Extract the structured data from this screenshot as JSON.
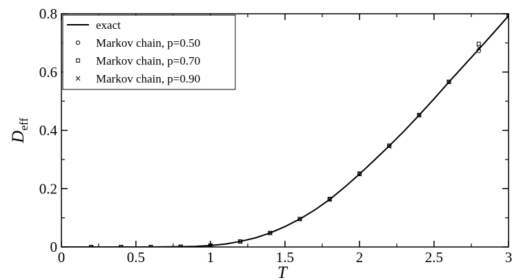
{
  "chart_data": {
    "type": "line",
    "title": "",
    "xlabel": "T",
    "ylabel_main": "D",
    "ylabel_sub": "eff",
    "xlim": [
      0,
      3
    ],
    "ylim": [
      0,
      0.8
    ],
    "x_ticks": [
      0,
      0.5,
      1,
      1.5,
      2,
      2.5,
      3
    ],
    "x_tick_labels": [
      "0",
      "0.5",
      "1",
      "1.5",
      "2",
      "2.5",
      "3"
    ],
    "y_ticks": [
      0,
      0.2,
      0.4,
      0.6,
      0.8
    ],
    "y_tick_labels": [
      "0",
      "0.2",
      "0.4",
      "0.6",
      "0.8"
    ],
    "grid": false,
    "legend_position": "top-left",
    "series": [
      {
        "name": "exact",
        "style": "line",
        "x": [
          0,
          0.2,
          0.4,
          0.6,
          0.8,
          0.9,
          1.0,
          1.1,
          1.2,
          1.3,
          1.4,
          1.5,
          1.6,
          1.7,
          1.8,
          1.9,
          2.0,
          2.1,
          2.2,
          2.3,
          2.4,
          2.5,
          2.6,
          2.7,
          2.8,
          2.9,
          3.0
        ],
        "y": [
          0,
          0,
          0,
          0,
          0.001,
          0.002,
          0.005,
          0.01,
          0.019,
          0.031,
          0.048,
          0.07,
          0.096,
          0.127,
          0.163,
          0.205,
          0.25,
          0.298,
          0.347,
          0.398,
          0.452,
          0.508,
          0.566,
          0.622,
          0.678,
          0.735,
          0.793
        ]
      },
      {
        "name": "Markov chain, p=0.50",
        "style": "circle",
        "x": [
          0.2,
          0.4,
          0.6,
          0.8,
          1.0,
          1.2,
          1.4,
          1.6,
          1.8,
          2.0,
          2.2,
          2.4,
          2.6,
          2.8,
          3.0
        ],
        "y": [
          0.0,
          0.0,
          0.0,
          0.001,
          0.005,
          0.019,
          0.048,
          0.096,
          0.163,
          0.25,
          0.347,
          0.452,
          0.566,
          0.672,
          0.793
        ]
      },
      {
        "name": "Markov chain, p=0.70",
        "style": "square",
        "x": [
          0.2,
          0.4,
          0.6,
          0.8,
          1.0,
          1.2,
          1.4,
          1.6,
          1.8,
          2.0,
          2.2,
          2.4,
          2.6,
          2.8,
          3.0
        ],
        "y": [
          0.0,
          0.0,
          0.0,
          0.001,
          0.005,
          0.019,
          0.048,
          0.096,
          0.165,
          0.252,
          0.348,
          0.453,
          0.567,
          0.697,
          0.793
        ]
      },
      {
        "name": "Markov chain, p=0.90",
        "style": "cross",
        "x": [
          0.2,
          0.4,
          0.6,
          0.8,
          1.0,
          1.2,
          1.4,
          1.6,
          1.8,
          2.0,
          2.2,
          2.4,
          2.6,
          2.8,
          3.0
        ],
        "y": [
          0.0,
          0.0,
          0.0,
          0.001,
          0.005,
          0.019,
          0.048,
          0.096,
          0.163,
          0.25,
          0.345,
          0.452,
          0.566,
          0.683,
          0.793
        ]
      }
    ]
  }
}
